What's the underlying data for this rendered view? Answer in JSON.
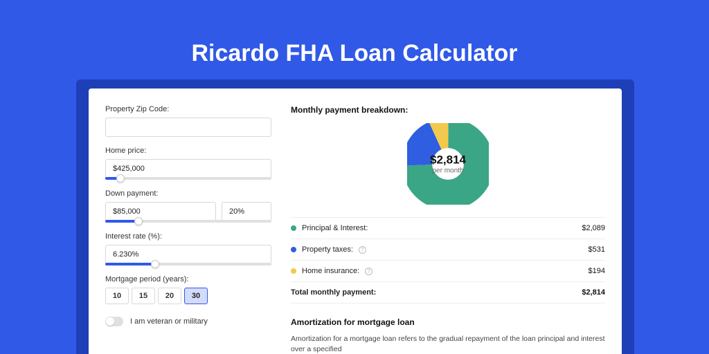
{
  "page": {
    "title": "Ricardo FHA Loan Calculator",
    "background_color": "#3059e8",
    "card_shadow_color": "#1e3fb8",
    "card_background": "#ffffff"
  },
  "form": {
    "zip": {
      "label": "Property Zip Code:",
      "value": ""
    },
    "home_price": {
      "label": "Home price:",
      "value": "$425,000",
      "slider_percent": 9
    },
    "down_payment": {
      "label": "Down payment:",
      "amount": "$85,000",
      "percent": "20%",
      "slider_percent": 20
    },
    "interest_rate": {
      "label": "Interest rate (%):",
      "value": "6.230%",
      "slider_percent": 30
    },
    "mortgage_period": {
      "label": "Mortgage period (years):",
      "options": [
        "10",
        "15",
        "20",
        "30"
      ],
      "active": "30"
    },
    "veteran": {
      "label": "I am veteran or military",
      "checked": false
    }
  },
  "breakdown": {
    "title": "Monthly payment breakdown:",
    "center_value": "$2,814",
    "center_sub": "per month",
    "donut": {
      "type": "donut",
      "values": [
        2089,
        531,
        194
      ],
      "colors": [
        "#3aa686",
        "#2f5fe0",
        "#f2c94c"
      ],
      "inner_radius": 0.63,
      "background_color": "#ffffff"
    },
    "rows": [
      {
        "dot": "#3aa686",
        "label": "Principal & Interest:",
        "help": false,
        "value": "$2,089"
      },
      {
        "dot": "#2f5fe0",
        "label": "Property taxes:",
        "help": true,
        "value": "$531"
      },
      {
        "dot": "#f2c94c",
        "label": "Home insurance:",
        "help": true,
        "value": "$194"
      }
    ],
    "total": {
      "label": "Total monthly payment:",
      "value": "$2,814"
    }
  },
  "amortization": {
    "heading": "Amortization for mortgage loan",
    "text": "Amortization for a mortgage loan refers to the gradual repayment of the loan principal and interest over a specified"
  }
}
